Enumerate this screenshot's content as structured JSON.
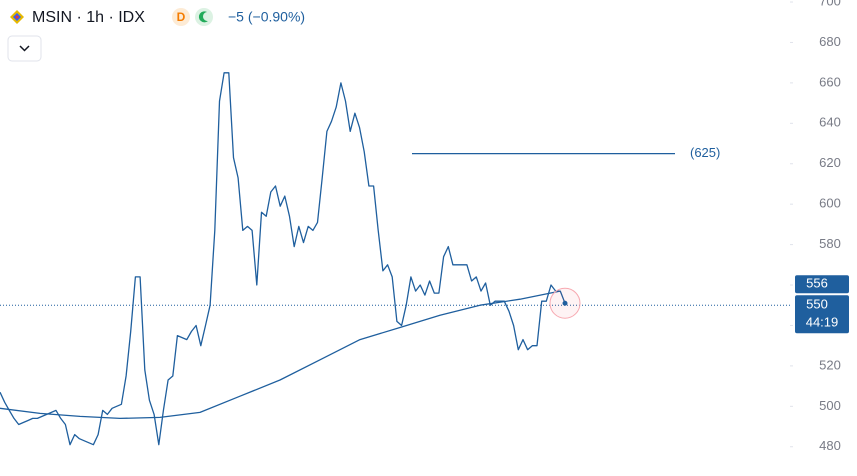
{
  "chart_data": {
    "type": "line",
    "title": "MSIN · 1h · IDX",
    "badge": "D",
    "change": "−5 (−0.90%)",
    "ylim": [
      468,
      701
    ],
    "yticks": [
      480,
      500,
      520,
      540,
      560,
      580,
      600,
      620,
      640,
      660,
      680,
      700
    ],
    "color": "#1f5f9e",
    "series": [
      {
        "color": "#1f5f9e",
        "values": [
          507,
          502,
          498,
          494,
          491,
          492,
          493,
          494,
          494,
          495,
          496,
          497,
          498,
          494,
          491,
          481,
          486,
          484,
          483,
          482,
          481,
          486,
          498,
          496,
          499,
          500,
          501,
          515,
          537,
          564,
          564,
          518,
          503,
          496,
          481,
          498,
          513,
          515,
          535,
          534,
          533,
          537,
          540,
          530,
          540,
          550,
          587,
          651,
          665,
          665,
          623,
          613,
          587,
          589,
          587,
          560,
          596,
          594,
          606,
          609,
          599,
          604,
          594,
          579,
          589,
          581,
          589,
          587,
          591,
          613,
          636,
          641,
          648,
          660,
          651,
          636,
          645,
          638,
          626,
          609,
          609,
          587,
          567,
          570,
          564,
          542,
          540,
          550,
          564,
          557,
          560,
          555,
          562,
          556,
          556,
          574,
          579,
          570,
          570,
          570,
          570,
          562,
          564,
          557,
          561,
          550,
          552,
          552,
          552,
          547,
          540,
          528,
          533,
          528,
          530,
          530,
          552,
          552,
          560,
          557,
          557,
          551
        ]
      },
      {
        "color": "#1f5f9e",
        "values": [
          499,
          496.5,
          495,
          494,
          494.5,
          497,
          505,
          513,
          523,
          533,
          539,
          545,
          550,
          553,
          557
        ]
      }
    ],
    "level": {
      "value": 625,
      "label": "(625)"
    },
    "ma_tag": 556,
    "last_price": 550,
    "countdown": "44:19"
  }
}
